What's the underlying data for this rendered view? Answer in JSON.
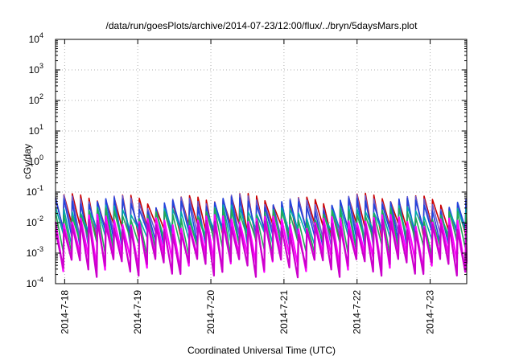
{
  "chart_data": {
    "type": "line",
    "title": "/data/run/goesPlots/archive/2014-07-23/12:00/flux/../bryn/5daysMars.plot",
    "xlabel": "Coordinated Universal Time (UTC)",
    "ylabel": "cGy/day",
    "yscale": "log",
    "ylim": [
      0.0001,
      10000
    ],
    "xlim": [
      "2014-07-17T21:00",
      "2014-07-23T12:00"
    ],
    "grid": true,
    "legend": "none",
    "y_ticks": [
      {
        "base": "10",
        "exp": "-4"
      },
      {
        "base": "10",
        "exp": "-3"
      },
      {
        "base": "10",
        "exp": "-2"
      },
      {
        "base": "10",
        "exp": "-1"
      },
      {
        "base": "10",
        "exp": "0"
      },
      {
        "base": "10",
        "exp": "1"
      },
      {
        "base": "10",
        "exp": "2"
      },
      {
        "base": "10",
        "exp": "3"
      },
      {
        "base": "10",
        "exp": "4"
      }
    ],
    "x_ticks": [
      {
        "label": "2014-7-18",
        "t": "2014-07-18T00:00"
      },
      {
        "label": "2014-7-19",
        "t": "2014-07-19T00:00"
      },
      {
        "label": "2014-7-20",
        "t": "2014-07-20T00:00"
      },
      {
        "label": "2014-7-21",
        "t": "2014-07-21T00:00"
      },
      {
        "label": "2014-7-22",
        "t": "2014-07-22T00:00"
      },
      {
        "label": "2014-7-23",
        "t": "2014-07-23T00:00"
      }
    ],
    "sawtooth_period_hours": 2.75,
    "series": [
      {
        "color": "#cc0000",
        "peak": 0.06,
        "trough": 0.006
      },
      {
        "color": "#6a5acd",
        "peak": 0.055,
        "trough": 0.004
      },
      {
        "color": "#2244dd",
        "peak": 0.045,
        "trough": 0.004
      },
      {
        "color": "#00aaaa",
        "peak": 0.025,
        "trough": 0.004
      },
      {
        "color": "#22aa55",
        "peak": 0.02,
        "trough": 0.002
      },
      {
        "color": "#ff00ff",
        "peak": 0.012,
        "trough": 0.0006
      },
      {
        "color": "#cc00cc",
        "peak": 0.008,
        "trough": 0.0004
      }
    ]
  }
}
